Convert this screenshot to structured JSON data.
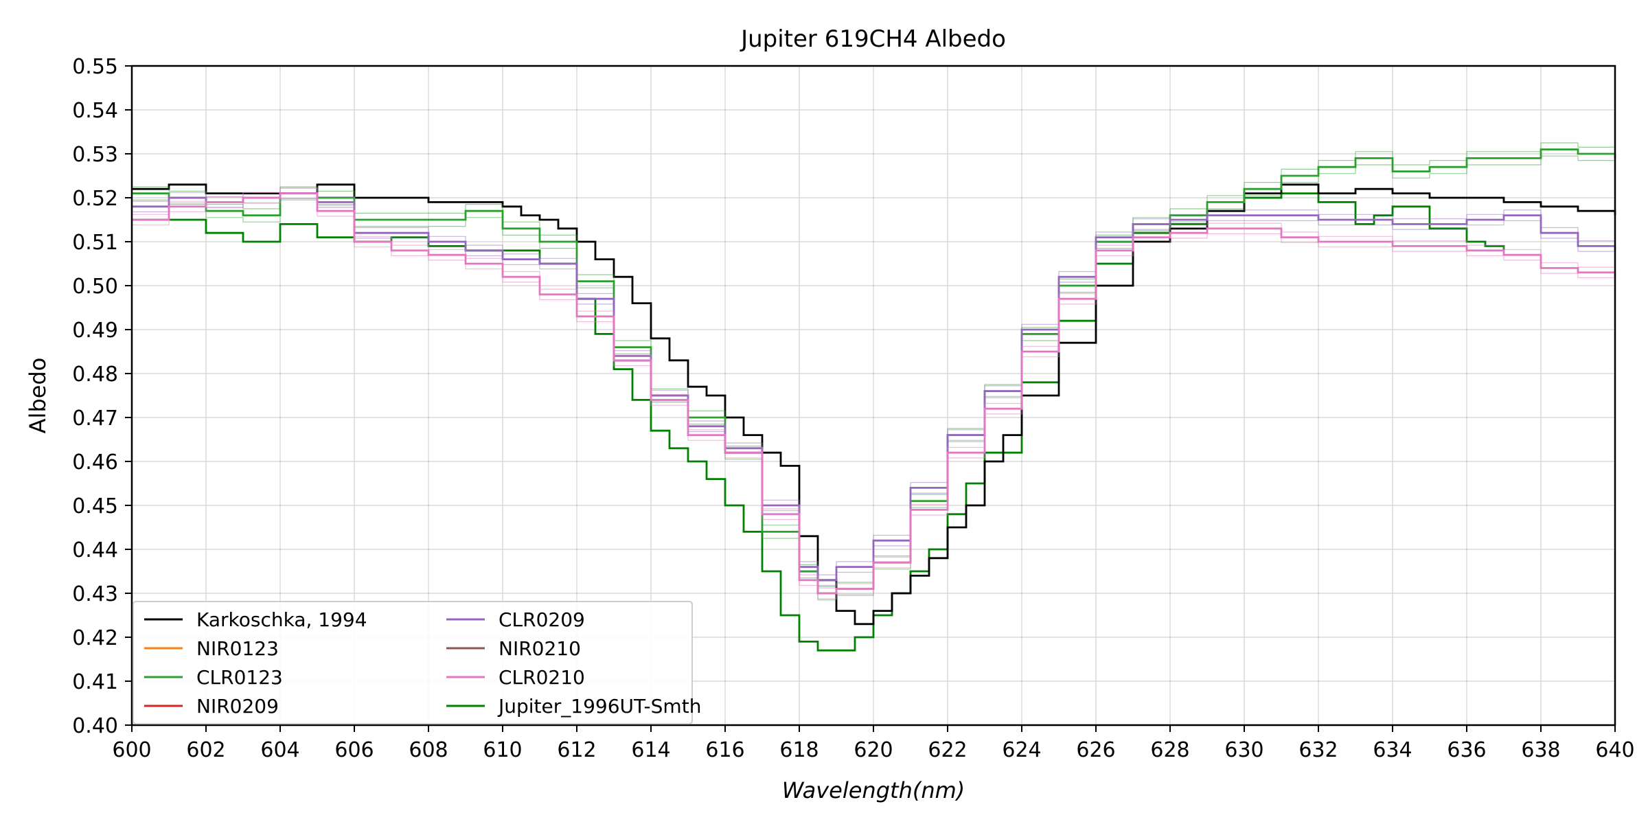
{
  "chart_data": {
    "type": "line",
    "title": "Jupiter 619CH4 Albedo",
    "xlabel": "Wavelength(nm)",
    "ylabel": "Albedo",
    "xlim": [
      600,
      640
    ],
    "ylim": [
      0.4,
      0.55
    ],
    "x_ticks": [
      "600",
      "602",
      "604",
      "606",
      "608",
      "610",
      "612",
      "614",
      "616",
      "618",
      "620",
      "622",
      "624",
      "626",
      "628",
      "630",
      "632",
      "634",
      "636",
      "638",
      "640"
    ],
    "y_ticks": [
      "0.40",
      "0.41",
      "0.42",
      "0.43",
      "0.44",
      "0.45",
      "0.46",
      "0.47",
      "0.48",
      "0.49",
      "0.50",
      "0.51",
      "0.52",
      "0.53",
      "0.54",
      "0.55"
    ],
    "grid": true,
    "legend_position": "bottom-left",
    "series": [
      {
        "name": "Karkoschka, 1994",
        "color": "#000000",
        "step": true,
        "x": [
          600,
          601,
          602,
          603,
          604,
          605,
          606,
          607,
          608,
          609,
          610,
          610.5,
          611,
          611.5,
          612,
          612.5,
          613,
          613.5,
          614,
          614.5,
          615,
          615.5,
          616,
          616.5,
          617,
          617.5,
          618,
          618.5,
          619,
          619.5,
          620,
          620.5,
          621,
          621.5,
          622,
          622.5,
          623,
          623.5,
          624,
          625,
          626,
          627,
          628,
          629,
          630,
          631,
          632,
          633,
          634,
          635,
          636,
          637,
          638,
          639,
          640
        ],
        "y": [
          0.522,
          0.523,
          0.521,
          0.521,
          0.521,
          0.523,
          0.52,
          0.52,
          0.519,
          0.519,
          0.518,
          0.516,
          0.515,
          0.513,
          0.51,
          0.506,
          0.502,
          0.496,
          0.488,
          0.483,
          0.477,
          0.475,
          0.47,
          0.466,
          0.462,
          0.459,
          0.443,
          0.433,
          0.426,
          0.423,
          0.426,
          0.43,
          0.434,
          0.438,
          0.445,
          0.45,
          0.46,
          0.466,
          0.475,
          0.487,
          0.5,
          0.51,
          0.513,
          0.517,
          0.521,
          0.523,
          0.521,
          0.522,
          0.521,
          0.52,
          0.52,
          0.519,
          0.518,
          0.517,
          0.516
        ]
      },
      {
        "name": "NIR0123",
        "color": "#ff7f0e",
        "step": true,
        "x": [],
        "y": []
      },
      {
        "name": "CLR0123",
        "color": "#2ca02c",
        "step": true,
        "x": [
          600,
          601,
          602,
          603,
          604,
          605,
          606,
          607,
          608,
          609,
          610,
          611,
          612,
          613,
          614,
          615,
          616,
          617,
          618,
          618.5,
          619,
          620,
          621,
          622,
          623,
          624,
          625,
          626,
          627,
          628,
          629,
          630,
          631,
          632,
          633,
          634,
          635,
          636,
          637,
          638,
          639,
          640
        ],
        "y": [
          0.521,
          0.52,
          0.517,
          0.516,
          0.521,
          0.52,
          0.515,
          0.515,
          0.515,
          0.517,
          0.513,
          0.51,
          0.501,
          0.486,
          0.475,
          0.47,
          0.462,
          0.444,
          0.435,
          0.43,
          0.431,
          0.437,
          0.451,
          0.466,
          0.476,
          0.489,
          0.5,
          0.51,
          0.514,
          0.516,
          0.519,
          0.522,
          0.525,
          0.527,
          0.529,
          0.526,
          0.527,
          0.529,
          0.529,
          0.531,
          0.53,
          0.529
        ]
      },
      {
        "name": "NIR0209",
        "color": "#d62728",
        "step": true,
        "x": [],
        "y": []
      },
      {
        "name": "CLR0209",
        "color": "#9467bd",
        "step": true,
        "x": [
          600,
          601,
          602,
          603,
          604,
          605,
          606,
          607,
          608,
          609,
          610,
          611,
          612,
          613,
          614,
          615,
          616,
          617,
          618,
          618.5,
          619,
          620,
          621,
          622,
          623,
          624,
          625,
          626,
          627,
          628,
          629,
          630,
          631,
          632,
          633,
          634,
          635,
          636,
          637,
          638,
          639,
          640
        ],
        "y": [
          0.518,
          0.52,
          0.519,
          0.52,
          0.521,
          0.519,
          0.512,
          0.512,
          0.51,
          0.508,
          0.506,
          0.505,
          0.497,
          0.484,
          0.475,
          0.468,
          0.463,
          0.45,
          0.436,
          0.433,
          0.436,
          0.442,
          0.454,
          0.466,
          0.476,
          0.49,
          0.502,
          0.511,
          0.514,
          0.515,
          0.516,
          0.516,
          0.516,
          0.515,
          0.515,
          0.514,
          0.514,
          0.515,
          0.516,
          0.512,
          0.509,
          0.508
        ]
      },
      {
        "name": "NIR0210",
        "color": "#8c564b",
        "step": true,
        "x": [],
        "y": []
      },
      {
        "name": "CLR0210",
        "color": "#e377c2",
        "step": true,
        "x": [
          600,
          601,
          602,
          603,
          604,
          605,
          606,
          607,
          608,
          609,
          610,
          611,
          612,
          613,
          614,
          615,
          616,
          617,
          618,
          618.5,
          619,
          620,
          621,
          622,
          623,
          624,
          625,
          626,
          627,
          628,
          629,
          630,
          631,
          632,
          633,
          634,
          635,
          636,
          637,
          638,
          639,
          640
        ],
        "y": [
          0.515,
          0.518,
          0.519,
          0.52,
          0.521,
          0.517,
          0.51,
          0.508,
          0.507,
          0.505,
          0.502,
          0.498,
          0.493,
          0.483,
          0.474,
          0.466,
          0.462,
          0.448,
          0.433,
          0.43,
          0.431,
          0.437,
          0.449,
          0.462,
          0.472,
          0.485,
          0.497,
          0.508,
          0.511,
          0.512,
          0.513,
          0.513,
          0.511,
          0.51,
          0.51,
          0.509,
          0.509,
          0.508,
          0.507,
          0.504,
          0.503,
          0.502
        ]
      },
      {
        "name": "Jupiter_1996UT-Smth",
        "color": "#008000",
        "step": true,
        "x": [
          600,
          601,
          602,
          603,
          604,
          605,
          606,
          607,
          608,
          609,
          610,
          611,
          612,
          612.5,
          613,
          613.5,
          614,
          614.5,
          615,
          615.5,
          616,
          616.5,
          617,
          617.5,
          618,
          618.5,
          619,
          619.5,
          620,
          620.5,
          621,
          621.5,
          622,
          622.5,
          623,
          624,
          625,
          626,
          627,
          628,
          629,
          630,
          631,
          632,
          633,
          633.5,
          634,
          635,
          636,
          636.5,
          637
        ],
        "y": [
          0.515,
          0.515,
          0.512,
          0.51,
          0.514,
          0.511,
          0.51,
          0.511,
          0.509,
          0.508,
          0.508,
          0.505,
          0.497,
          0.489,
          0.481,
          0.474,
          0.467,
          0.463,
          0.46,
          0.456,
          0.45,
          0.444,
          0.435,
          0.425,
          0.419,
          0.417,
          0.417,
          0.42,
          0.425,
          0.43,
          0.435,
          0.44,
          0.448,
          0.455,
          0.462,
          0.478,
          0.492,
          0.505,
          0.512,
          0.514,
          0.517,
          0.52,
          0.521,
          0.519,
          0.514,
          0.516,
          0.518,
          0.513,
          0.51,
          0.509,
          0.508
        ]
      }
    ]
  }
}
